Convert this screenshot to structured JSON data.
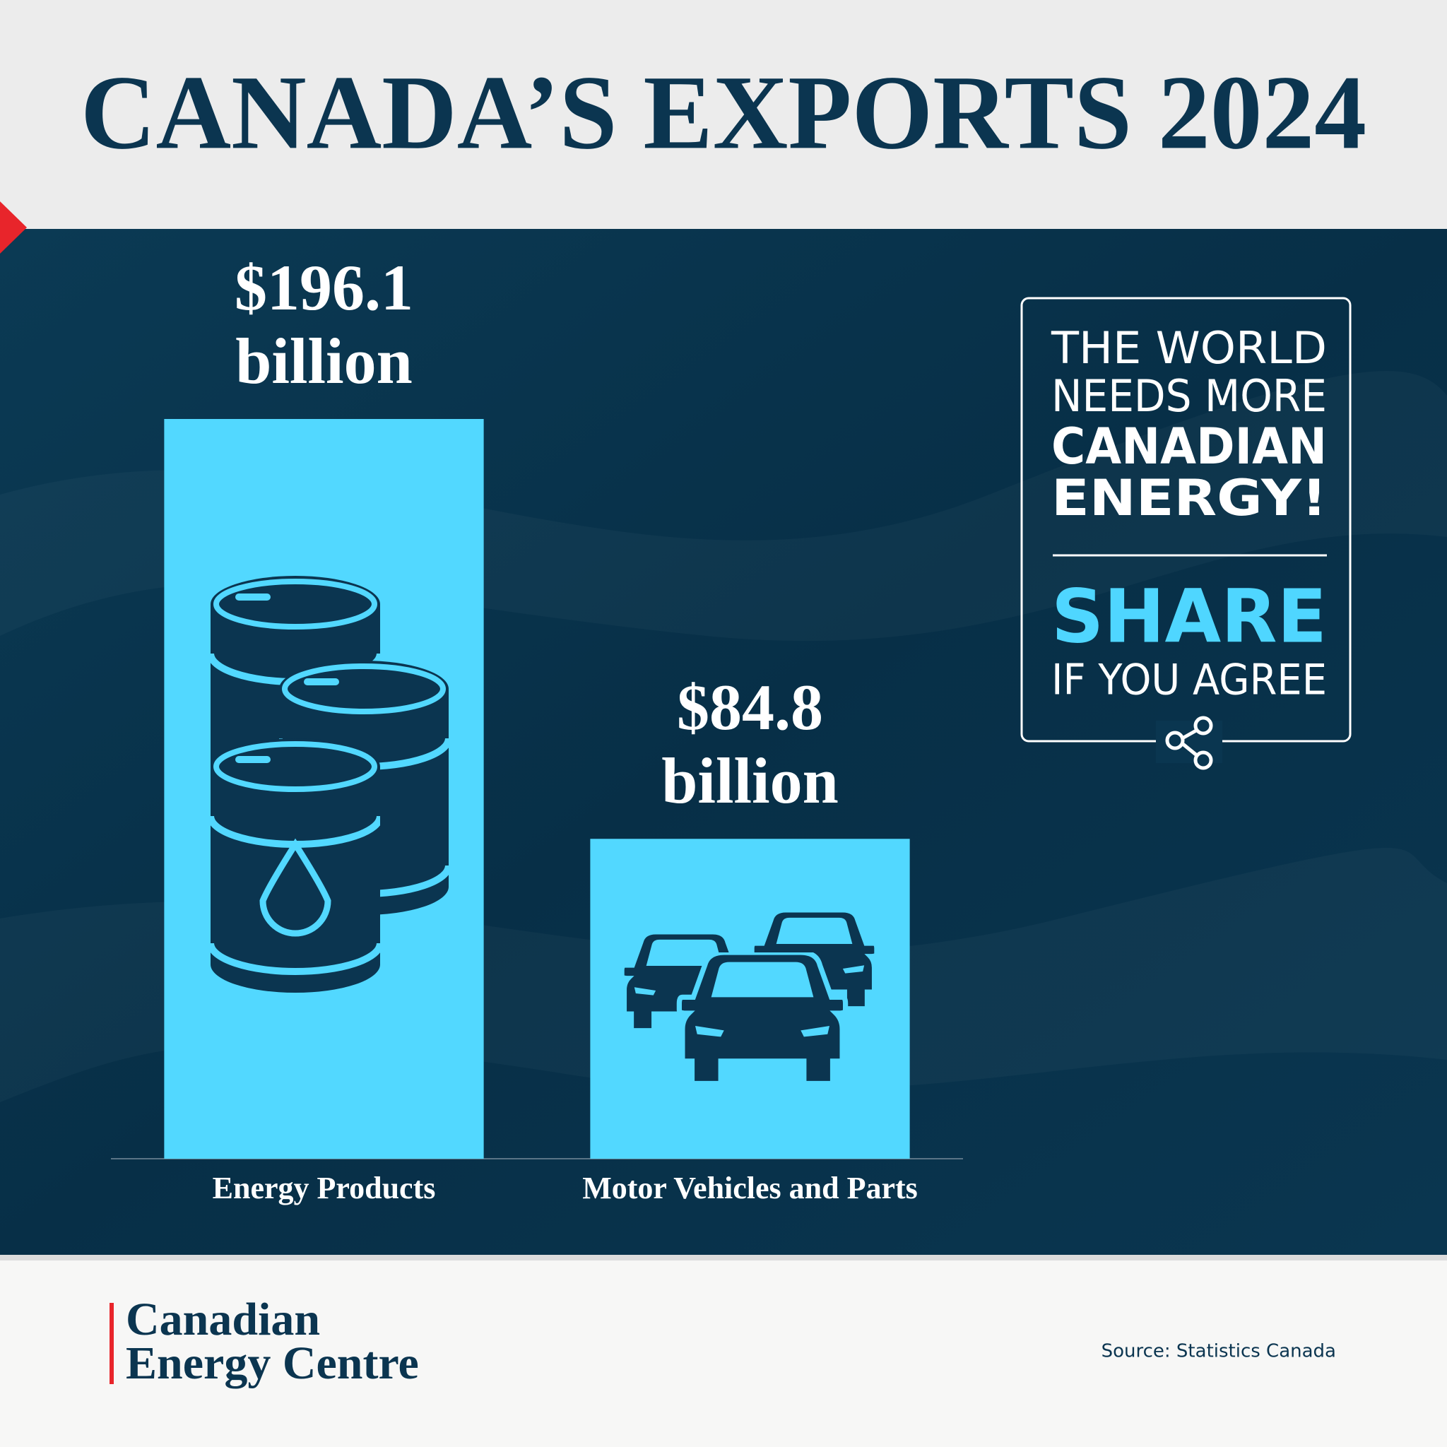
{
  "chart_data": {
    "type": "bar",
    "title": "CANADA’S EXPORTS 2024",
    "categories": [
      "Energy Products",
      "Motor Vehicles and Parts"
    ],
    "values": [
      196.1,
      84.8
    ],
    "value_labels": [
      "$196.1 billion",
      "$84.8 billion"
    ],
    "color": "#52d8ff"
  },
  "callout": {
    "lines": [
      "THE WORLD",
      "NEEDS MORE",
      "CANADIAN",
      "ENERGY!"
    ],
    "share": "SHARE",
    "agree": "IF YOU AGREE"
  },
  "logo": {
    "lines": [
      "Canadian",
      "Energy Centre"
    ]
  },
  "source": "Source: Statistics Canada"
}
